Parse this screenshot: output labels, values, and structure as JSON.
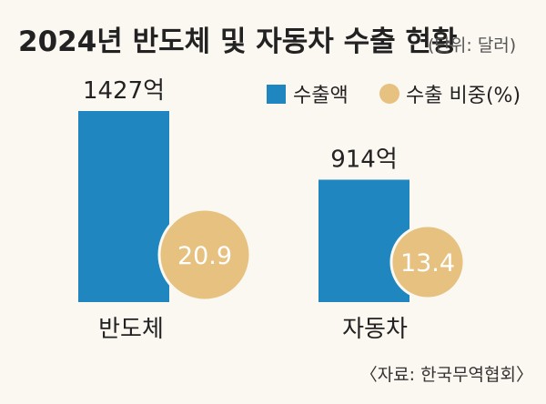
{
  "title": "2024년 반도체 및 자동차 수출 현황",
  "unit": "(단위: 달러)",
  "legend": {
    "bar": "수출액",
    "circle": "수출 비중(%)"
  },
  "colors": {
    "bar": "#1f86bf",
    "circle": "#e6c17f",
    "background": "#fbf7f1"
  },
  "source": "〈자료: 한국무역협회〉",
  "chart_data": {
    "type": "bar",
    "title": "2024년 반도체 및 자동차 수출 현황",
    "unit": "(단위: 달러)",
    "categories": [
      "반도체",
      "자동차"
    ],
    "series": [
      {
        "name": "수출액",
        "values": [
          1427,
          914
        ],
        "labels": [
          "1427억",
          "914억"
        ]
      },
      {
        "name": "수출 비중(%)",
        "values": [
          20.9,
          13.4
        ],
        "labels": [
          "20.9",
          "13.4"
        ]
      }
    ],
    "ylim": [
      0,
      1427
    ],
    "grid": false,
    "legend_position": "top-right"
  }
}
